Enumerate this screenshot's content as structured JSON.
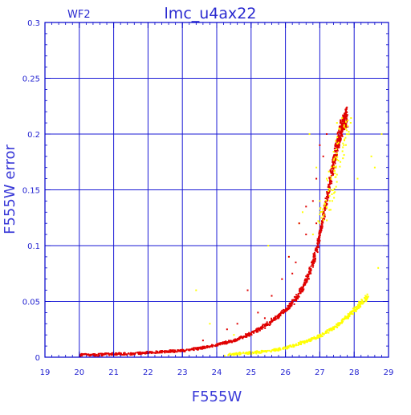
{
  "chart_data": {
    "type": "scatter",
    "title": "lmc_u4ax22",
    "subtitle": "WF2",
    "xlabel": "F555W",
    "ylabel": "F555W error",
    "xlim": [
      19,
      29
    ],
    "ylim": [
      0,
      0.3
    ],
    "grid": true,
    "x_ticks": [
      "19",
      "20",
      "21",
      "22",
      "23",
      "24",
      "25",
      "26",
      "27",
      "28",
      "29"
    ],
    "y_ticks": [
      "0",
      "0.05",
      "0.1",
      "0.15",
      "0.2",
      "0.25",
      "0.3"
    ],
    "colors": {
      "frame": "#0000cc",
      "grid": "#1a1ad6",
      "red_series": "#e00000",
      "yellow_series": "#ffff00"
    },
    "series": [
      {
        "color": "#e00000",
        "curve": [
          [
            20.0,
            0.002
          ],
          [
            20.5,
            0.002
          ],
          [
            21.0,
            0.003
          ],
          [
            21.5,
            0.003
          ],
          [
            22.0,
            0.004
          ],
          [
            22.5,
            0.005
          ],
          [
            23.0,
            0.006
          ],
          [
            23.5,
            0.008
          ],
          [
            24.0,
            0.011
          ],
          [
            24.5,
            0.015
          ],
          [
            25.0,
            0.021
          ],
          [
            25.5,
            0.03
          ],
          [
            26.0,
            0.042
          ],
          [
            26.3,
            0.052
          ],
          [
            26.5,
            0.062
          ],
          [
            26.7,
            0.075
          ],
          [
            26.9,
            0.095
          ],
          [
            27.0,
            0.11
          ],
          [
            27.1,
            0.125
          ],
          [
            27.2,
            0.14
          ],
          [
            27.3,
            0.158
          ],
          [
            27.4,
            0.175
          ],
          [
            27.5,
            0.19
          ],
          [
            27.6,
            0.202
          ],
          [
            27.7,
            0.212
          ],
          [
            27.8,
            0.216
          ]
        ],
        "outliers": [
          [
            24.9,
            0.06
          ],
          [
            25.2,
            0.04
          ],
          [
            25.6,
            0.055
          ],
          [
            25.9,
            0.07
          ],
          [
            26.1,
            0.09
          ],
          [
            26.2,
            0.075
          ],
          [
            26.4,
            0.12
          ],
          [
            26.6,
            0.11
          ],
          [
            26.6,
            0.135
          ],
          [
            26.8,
            0.14
          ],
          [
            26.9,
            0.16
          ],
          [
            26.9,
            0.12
          ],
          [
            27.0,
            0.19
          ],
          [
            27.1,
            0.18
          ],
          [
            27.2,
            0.2
          ],
          [
            26.3,
            0.085
          ],
          [
            25.4,
            0.035
          ],
          [
            24.3,
            0.025
          ],
          [
            23.6,
            0.015
          ],
          [
            24.6,
            0.03
          ]
        ]
      },
      {
        "color": "#ffff00",
        "curve": [
          [
            24.2,
            0.002
          ],
          [
            24.6,
            0.003
          ],
          [
            25.0,
            0.004
          ],
          [
            25.4,
            0.005
          ],
          [
            25.8,
            0.007
          ],
          [
            26.2,
            0.01
          ],
          [
            26.6,
            0.014
          ],
          [
            27.0,
            0.019
          ],
          [
            27.4,
            0.026
          ],
          [
            27.8,
            0.036
          ],
          [
            28.1,
            0.045
          ],
          [
            28.4,
            0.055
          ]
        ],
        "outliers": [
          [
            23.4,
            0.06
          ],
          [
            24.5,
            0.02
          ],
          [
            25.5,
            0.1
          ],
          [
            26.4,
            0.12
          ],
          [
            26.7,
            0.2
          ],
          [
            26.9,
            0.17
          ],
          [
            27.0,
            0.14
          ],
          [
            27.2,
            0.16
          ],
          [
            27.5,
            0.21
          ],
          [
            28.1,
            0.16
          ],
          [
            28.5,
            0.18
          ],
          [
            28.6,
            0.17
          ],
          [
            28.8,
            0.2
          ],
          [
            28.7,
            0.08
          ],
          [
            23.8,
            0.03
          ],
          [
            26.1,
            0.09
          ],
          [
            26.8,
            0.11
          ],
          [
            27.6,
            0.175
          ],
          [
            27.7,
            0.19
          ],
          [
            26.5,
            0.13
          ]
        ]
      }
    ]
  }
}
